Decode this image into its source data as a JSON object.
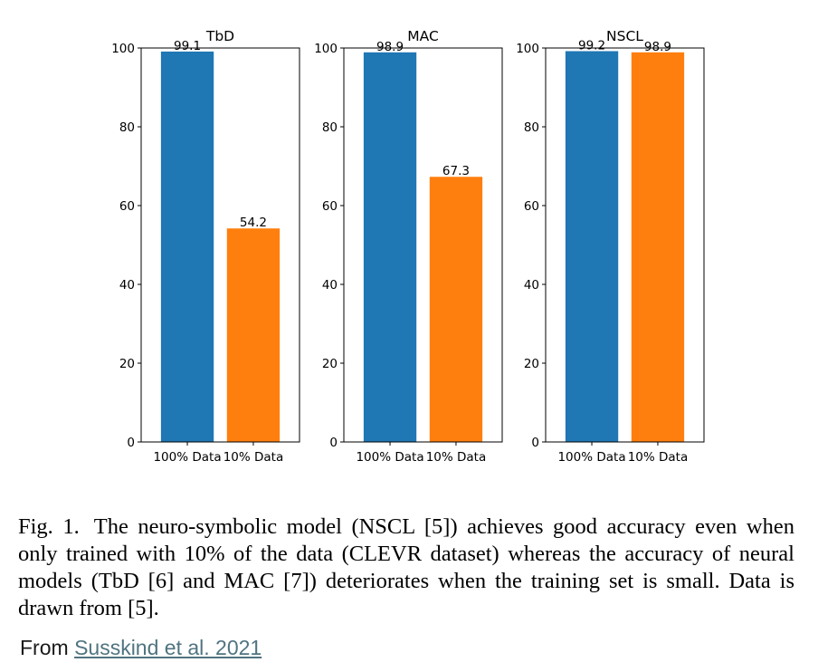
{
  "chart_data": [
    {
      "type": "bar",
      "title": "TbD",
      "categories": [
        "100% Data",
        "10% Data"
      ],
      "values": [
        99.1,
        54.2
      ],
      "data_labels": [
        "99.1",
        "54.2"
      ],
      "colors": [
        "#1f77b4",
        "#ff7f0e"
      ],
      "ylim": [
        0,
        100
      ],
      "yticks": [
        "0",
        "20",
        "40",
        "60",
        "80",
        "100"
      ],
      "xlabel": "",
      "ylabel": "",
      "grid": false,
      "legend": "none"
    },
    {
      "type": "bar",
      "title": "MAC",
      "categories": [
        "100% Data",
        "10% Data"
      ],
      "values": [
        98.9,
        67.3
      ],
      "data_labels": [
        "98.9",
        "67.3"
      ],
      "colors": [
        "#1f77b4",
        "#ff7f0e"
      ],
      "ylim": [
        0,
        100
      ],
      "yticks": [
        "0",
        "20",
        "40",
        "60",
        "80",
        "100"
      ],
      "xlabel": "",
      "ylabel": "",
      "grid": false,
      "legend": "none"
    },
    {
      "type": "bar",
      "title": "NSCL",
      "categories": [
        "100% Data",
        "10% Data"
      ],
      "values": [
        99.2,
        98.9
      ],
      "data_labels": [
        "99.2",
        "98.9"
      ],
      "colors": [
        "#1f77b4",
        "#ff7f0e"
      ],
      "ylim": [
        0,
        100
      ],
      "yticks": [
        "0",
        "20",
        "40",
        "60",
        "80",
        "100"
      ],
      "xlabel": "",
      "ylabel": "",
      "grid": false,
      "legend": "none"
    }
  ],
  "caption": {
    "label": "Fig. 1.",
    "text": "The neuro-symbolic model (NSCL [5]) achieves good accuracy even when only trained with 10% of the data (CLEVR dataset) whereas the accuracy of neural models (TbD [6] and MAC [7]) deteriorates when the training set is small. Data is drawn from [5]."
  },
  "source": {
    "prefix": "From",
    "link_text": "Susskind et al. 2021"
  }
}
